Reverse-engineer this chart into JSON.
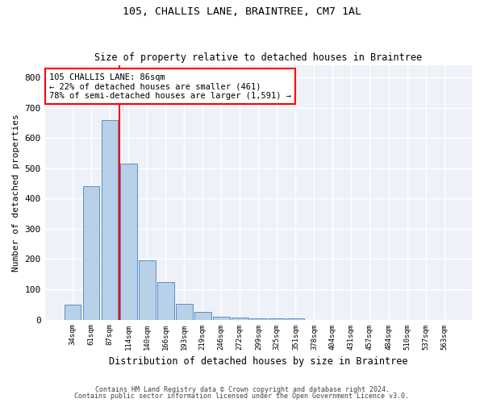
{
  "title1": "105, CHALLIS LANE, BRAINTREE, CM7 1AL",
  "title2": "Size of property relative to detached houses in Braintree",
  "xlabel": "Distribution of detached houses by size in Braintree",
  "ylabel": "Number of detached properties",
  "bar_labels": [
    "34sqm",
    "61sqm",
    "87sqm",
    "114sqm",
    "140sqm",
    "166sqm",
    "193sqm",
    "219sqm",
    "246sqm",
    "272sqm",
    "299sqm",
    "325sqm",
    "351sqm",
    "378sqm",
    "404sqm",
    "431sqm",
    "457sqm",
    "484sqm",
    "510sqm",
    "537sqm",
    "563sqm"
  ],
  "bar_values": [
    50,
    440,
    660,
    515,
    195,
    125,
    52,
    26,
    10,
    7,
    5,
    5,
    5,
    0,
    0,
    0,
    0,
    0,
    0,
    0,
    0
  ],
  "bar_color": "#b8d0e8",
  "bar_edge_color": "#5b8fc9",
  "property_line_x": 2.5,
  "annotation_text": "105 CHALLIS LANE: 86sqm\n← 22% of detached houses are smaller (461)\n78% of semi-detached houses are larger (1,591) →",
  "annotation_box_color": "white",
  "annotation_box_edge_color": "red",
  "ylim": [
    0,
    840
  ],
  "yticks": [
    0,
    100,
    200,
    300,
    400,
    500,
    600,
    700,
    800
  ],
  "background_color": "#eef2f8",
  "grid_color": "white",
  "footer1": "Contains HM Land Registry data © Crown copyright and database right 2024.",
  "footer2": "Contains public sector information licensed under the Open Government Licence v3.0."
}
